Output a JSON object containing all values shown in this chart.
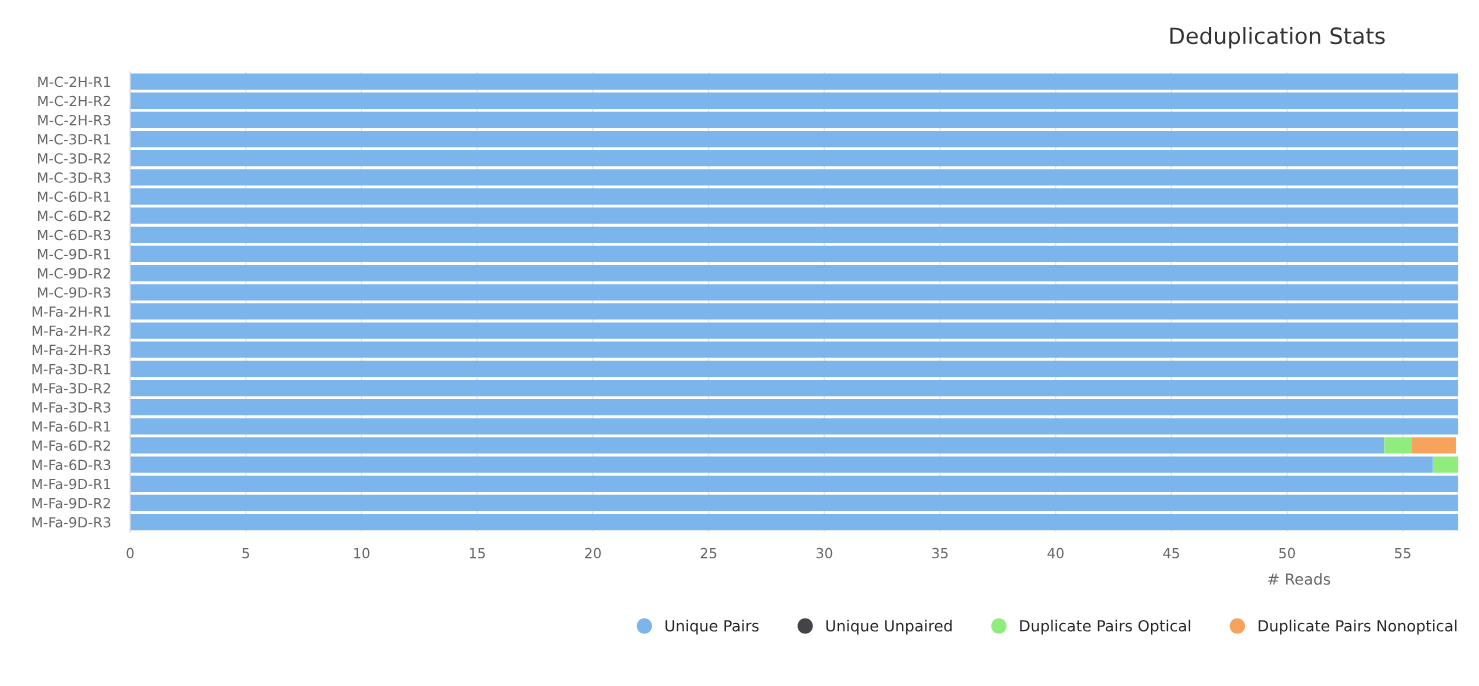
{
  "chart_data": {
    "type": "bar",
    "orientation": "horizontal",
    "stacked": true,
    "title": "Deduplication Stats",
    "xlabel": "# Reads",
    "categories": [
      "M-C-2H-R1",
      "M-C-2H-R2",
      "M-C-2H-R3",
      "M-C-3D-R1",
      "M-C-3D-R2",
      "M-C-3D-R3",
      "M-C-6D-R1",
      "M-C-6D-R2",
      "M-C-6D-R3",
      "M-C-9D-R1",
      "M-C-9D-R2",
      "M-C-9D-R3",
      "M-Fa-2H-R1",
      "M-Fa-2H-R2",
      "M-Fa-2H-R3",
      "M-Fa-3D-R1",
      "M-Fa-3D-R2",
      "M-Fa-3D-R3",
      "M-Fa-6D-R1",
      "M-Fa-6D-R2",
      "M-Fa-6D-R3",
      "M-Fa-9D-R1",
      "M-Fa-9D-R2",
      "M-Fa-9D-R3"
    ],
    "series": [
      {
        "name": "Unique Pairs",
        "color": "#7cb5ec",
        "values": [
          57.4,
          57.4,
          57.4,
          57.4,
          57.4,
          57.4,
          57.4,
          57.4,
          57.4,
          57.4,
          57.4,
          57.4,
          57.4,
          57.4,
          57.4,
          57.4,
          57.4,
          57.4,
          57.4,
          54.2,
          56.3,
          57.4,
          57.4,
          57.4
        ]
      },
      {
        "name": "Unique Unpaired",
        "color": "#434348",
        "values": [
          0,
          0,
          0,
          0,
          0,
          0,
          0,
          0,
          0,
          0,
          0,
          0,
          0,
          0,
          0,
          0,
          0,
          0,
          0,
          0,
          0,
          0,
          0,
          0
        ]
      },
      {
        "name": "Duplicate Pairs Optical",
        "color": "#90ed7d",
        "values": [
          0,
          0,
          0,
          0,
          0,
          0,
          0,
          0,
          0,
          0,
          0,
          0,
          0,
          0,
          0,
          0,
          0,
          0,
          0,
          1.2,
          1.1,
          0,
          0,
          0
        ]
      },
      {
        "name": "Duplicate Pairs Nonoptical",
        "color": "#f7a35c",
        "values": [
          0,
          0,
          0,
          0,
          0,
          0,
          0,
          0,
          0,
          0,
          0,
          0,
          0,
          0,
          0,
          0,
          0,
          0,
          0,
          1.9,
          0,
          0,
          0,
          0
        ]
      }
    ],
    "xlim": [
      0,
      57.4
    ],
    "xticks": [
      0,
      5,
      10,
      15,
      20,
      25,
      30,
      35,
      40,
      45,
      50,
      55
    ],
    "grid": "x",
    "legend": "bottom right"
  }
}
